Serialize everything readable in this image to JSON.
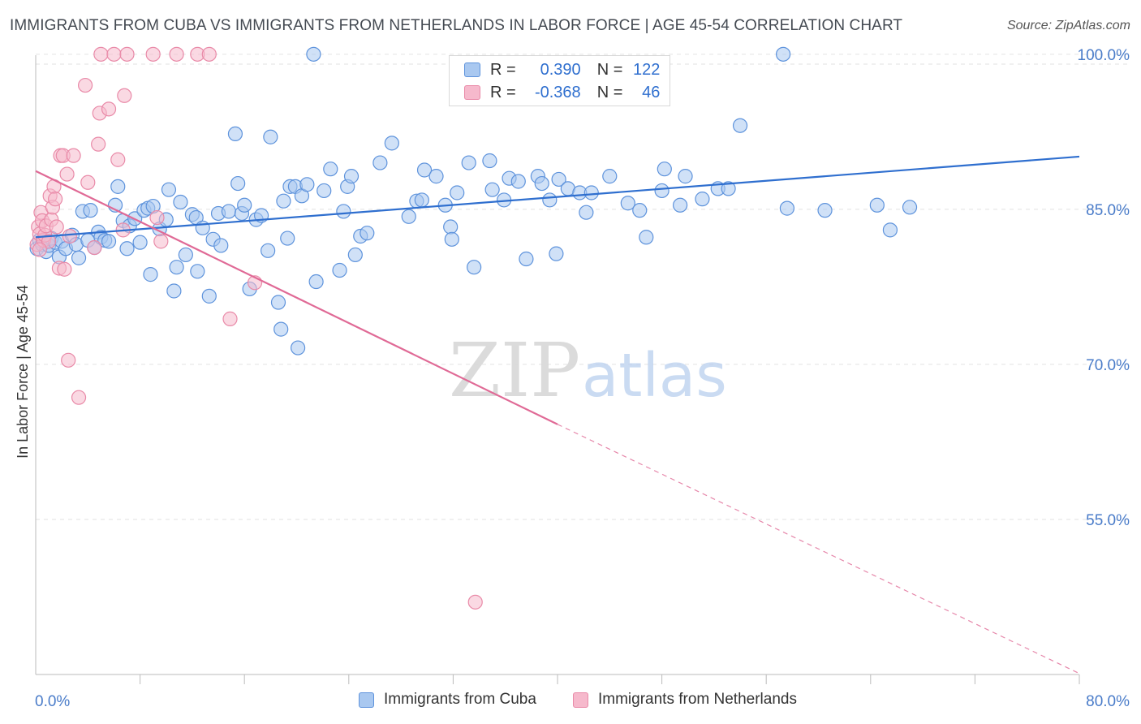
{
  "title": "IMMIGRANTS FROM CUBA VS IMMIGRANTS FROM NETHERLANDS IN LABOR FORCE | AGE 45-54 CORRELATION CHART",
  "source": "Source: ZipAtlas.com",
  "watermark": {
    "zip": "ZIP",
    "atlas": "atlas"
  },
  "colors": {
    "cuba_fill": "#a9c8f0",
    "cuba_stroke": "#5e93dc",
    "cuba_line": "#2f6fcf",
    "neth_fill": "#f6b9cc",
    "neth_stroke": "#e98aa8",
    "neth_line": "#e06a96",
    "tick_text": "#4a7cc9",
    "grid": "#e2e2e2"
  },
  "legend": {
    "r_label": "R =",
    "n_label": "N =",
    "rows": [
      {
        "r": "0.390",
        "n": "122"
      },
      {
        "r": "-0.368",
        "n": "46"
      }
    ]
  },
  "chart_data": {
    "type": "scatter",
    "xlabel": "",
    "ylabel": "In Labor Force | Age 45-54",
    "xlim": [
      0,
      80
    ],
    "ylim": [
      40,
      102.5
    ],
    "x_tick_labels": [
      "0.0%",
      "80.0%"
    ],
    "y_ticks": [
      55,
      70,
      85,
      100
    ],
    "y_tick_labels": [
      "55.0%",
      "70.0%",
      "85.0%",
      "100.0%"
    ],
    "grid": "horizontal dashed",
    "series": [
      {
        "name": "Immigrants from Cuba",
        "r": 0.39,
        "n": 122,
        "trend": {
          "x": [
            0,
            80
          ],
          "y": [
            82.3,
            90.1
          ],
          "style": "solid"
        },
        "points": [
          [
            0.1,
            81.2
          ],
          [
            0.3,
            82.0
          ],
          [
            0.5,
            81.6
          ],
          [
            0.8,
            80.9
          ],
          [
            1.0,
            81.5
          ],
          [
            1.2,
            82.2
          ],
          [
            1.5,
            81.8
          ],
          [
            1.8,
            80.4
          ],
          [
            2.0,
            81.9
          ],
          [
            2.3,
            81.2
          ],
          [
            2.8,
            82.5
          ],
          [
            3.1,
            81.6
          ],
          [
            3.3,
            80.3
          ],
          [
            3.6,
            84.8
          ],
          [
            4.0,
            82.0
          ],
          [
            4.2,
            84.9
          ],
          [
            4.5,
            81.3
          ],
          [
            4.8,
            82.8
          ],
          [
            5.0,
            82.3
          ],
          [
            5.3,
            82.0
          ],
          [
            5.6,
            81.9
          ],
          [
            6.1,
            85.4
          ],
          [
            6.3,
            87.2
          ],
          [
            6.7,
            83.9
          ],
          [
            7.0,
            81.2
          ],
          [
            7.2,
            83.4
          ],
          [
            7.6,
            84.1
          ],
          [
            8.0,
            81.8
          ],
          [
            8.3,
            84.9
          ],
          [
            8.6,
            85.1
          ],
          [
            8.8,
            78.7
          ],
          [
            9.0,
            85.3
          ],
          [
            9.5,
            83.1
          ],
          [
            10.0,
            84.0
          ],
          [
            10.2,
            86.9
          ],
          [
            10.6,
            77.1
          ],
          [
            10.8,
            79.4
          ],
          [
            11.1,
            85.7
          ],
          [
            11.5,
            80.6
          ],
          [
            12.0,
            84.5
          ],
          [
            12.3,
            84.2
          ],
          [
            12.4,
            79.0
          ],
          [
            12.8,
            83.2
          ],
          [
            13.3,
            76.6
          ],
          [
            13.6,
            82.1
          ],
          [
            14.0,
            84.6
          ],
          [
            14.2,
            81.5
          ],
          [
            14.8,
            84.8
          ],
          [
            15.3,
            92.3
          ],
          [
            15.5,
            87.5
          ],
          [
            15.8,
            84.6
          ],
          [
            16.0,
            85.4
          ],
          [
            16.4,
            77.3
          ],
          [
            16.9,
            84.0
          ],
          [
            17.3,
            84.4
          ],
          [
            17.8,
            81.0
          ],
          [
            18.0,
            92.0
          ],
          [
            18.6,
            76.0
          ],
          [
            18.8,
            73.4
          ],
          [
            19.0,
            85.8
          ],
          [
            19.3,
            82.2
          ],
          [
            19.5,
            87.2
          ],
          [
            19.9,
            87.2
          ],
          [
            20.1,
            71.6
          ],
          [
            20.4,
            86.3
          ],
          [
            20.8,
            87.4
          ],
          [
            21.3,
            100.0
          ],
          [
            21.5,
            78.0
          ],
          [
            22.1,
            86.8
          ],
          [
            22.6,
            88.9
          ],
          [
            23.3,
            79.1
          ],
          [
            23.6,
            84.8
          ],
          [
            23.9,
            87.2
          ],
          [
            24.2,
            88.2
          ],
          [
            24.5,
            80.6
          ],
          [
            24.9,
            82.4
          ],
          [
            25.4,
            82.7
          ],
          [
            26.4,
            89.5
          ],
          [
            27.3,
            91.4
          ],
          [
            28.6,
            84.3
          ],
          [
            29.2,
            85.8
          ],
          [
            29.6,
            85.9
          ],
          [
            29.8,
            88.8
          ],
          [
            30.7,
            88.2
          ],
          [
            31.4,
            85.4
          ],
          [
            31.8,
            83.3
          ],
          [
            31.9,
            82.1
          ],
          [
            32.3,
            86.6
          ],
          [
            33.2,
            89.5
          ],
          [
            33.6,
            79.4
          ],
          [
            34.8,
            89.7
          ],
          [
            35.0,
            86.9
          ],
          [
            35.9,
            85.9
          ],
          [
            36.3,
            88.0
          ],
          [
            37.0,
            87.7
          ],
          [
            37.6,
            80.2
          ],
          [
            38.5,
            88.2
          ],
          [
            38.8,
            87.5
          ],
          [
            39.4,
            85.9
          ],
          [
            39.9,
            80.7
          ],
          [
            40.1,
            87.9
          ],
          [
            40.8,
            87.0
          ],
          [
            41.7,
            86.6
          ],
          [
            42.2,
            84.7
          ],
          [
            42.6,
            86.6
          ],
          [
            44.0,
            88.2
          ],
          [
            45.4,
            85.6
          ],
          [
            46.3,
            84.9
          ],
          [
            46.8,
            82.3
          ],
          [
            48.0,
            86.8
          ],
          [
            48.2,
            88.9
          ],
          [
            49.4,
            85.4
          ],
          [
            49.8,
            88.2
          ],
          [
            51.1,
            86.0
          ],
          [
            52.3,
            87.0
          ],
          [
            53.1,
            87.0
          ],
          [
            54.0,
            93.1
          ],
          [
            57.3,
            100.0
          ],
          [
            57.6,
            85.1
          ],
          [
            60.5,
            84.9
          ],
          [
            64.5,
            85.4
          ],
          [
            65.5,
            83.0
          ],
          [
            67.0,
            85.2
          ]
        ]
      },
      {
        "name": "Immigrants from Netherlands",
        "r": -0.368,
        "n": 46,
        "trend": {
          "x": [
            0,
            40
          ],
          "y": [
            88.7,
            64.2
          ],
          "style": "solid"
        },
        "trend_extension": {
          "x": [
            40,
            80
          ],
          "y": [
            64.2,
            40.1
          ],
          "style": "dashed"
        },
        "points": [
          [
            0.1,
            81.6
          ],
          [
            0.2,
            83.3
          ],
          [
            0.3,
            82.6
          ],
          [
            0.4,
            84.7
          ],
          [
            0.5,
            83.9
          ],
          [
            0.6,
            82.0
          ],
          [
            0.7,
            82.5
          ],
          [
            0.8,
            83.4
          ],
          [
            1.0,
            81.9
          ],
          [
            1.1,
            86.3
          ],
          [
            1.2,
            84.0
          ],
          [
            1.3,
            85.2
          ],
          [
            1.4,
            87.2
          ],
          [
            1.5,
            86.0
          ],
          [
            1.6,
            83.3
          ],
          [
            1.8,
            79.3
          ],
          [
            1.9,
            90.2
          ],
          [
            2.1,
            90.2
          ],
          [
            2.2,
            79.2
          ],
          [
            2.4,
            88.4
          ],
          [
            2.5,
            70.4
          ],
          [
            2.6,
            82.4
          ],
          [
            2.9,
            90.2
          ],
          [
            3.3,
            66.8
          ],
          [
            3.8,
            97.0
          ],
          [
            4.0,
            87.6
          ],
          [
            4.5,
            81.3
          ],
          [
            4.8,
            91.3
          ],
          [
            4.9,
            94.3
          ],
          [
            5.0,
            100.0
          ],
          [
            5.6,
            94.7
          ],
          [
            6.0,
            100.0
          ],
          [
            6.3,
            89.8
          ],
          [
            6.7,
            83.0
          ],
          [
            6.8,
            96.0
          ],
          [
            7.0,
            100.0
          ],
          [
            9.0,
            100.0
          ],
          [
            9.3,
            84.2
          ],
          [
            9.6,
            81.9
          ],
          [
            10.8,
            100.0
          ],
          [
            12.4,
            100.0
          ],
          [
            13.3,
            100.0
          ],
          [
            14.9,
            74.4
          ],
          [
            16.8,
            77.9
          ],
          [
            33.7,
            47.0
          ],
          [
            0.3,
            81.1
          ]
        ]
      }
    ]
  }
}
